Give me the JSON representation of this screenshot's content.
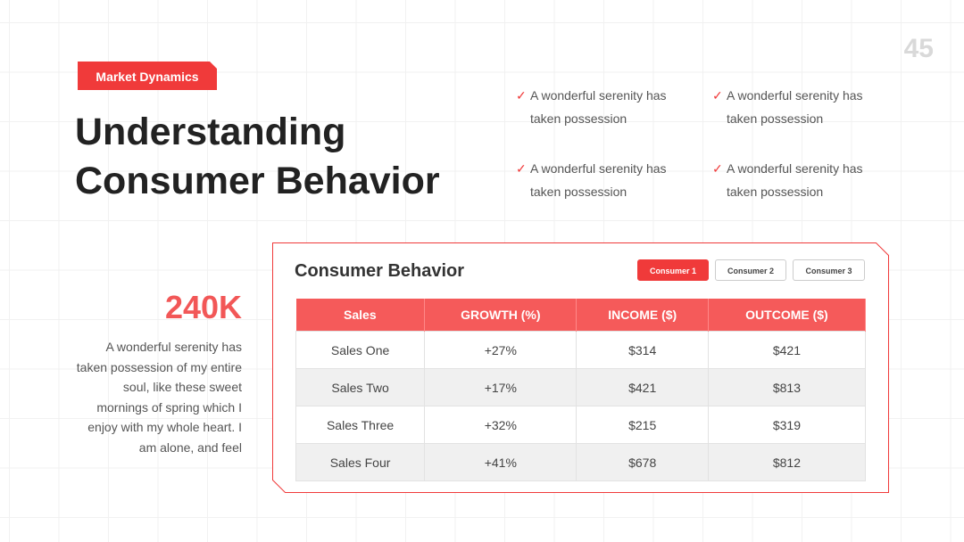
{
  "page_number": "45",
  "tag": "Market Dynamics",
  "title": [
    "Understanding",
    "Consumer Behavior"
  ],
  "checklist": [
    "A wonderful serenity has taken possession",
    "A wonderful serenity has taken possession",
    "A wonderful serenity has taken possession",
    "A wonderful serenity has taken possession"
  ],
  "stat": {
    "value": "240K",
    "text": "A wonderful serenity has taken possession of my entire soul, like these sweet mornings of spring which I enjoy with my whole heart. I am alone, and feel"
  },
  "card": {
    "title": "Consumer Behavior",
    "tabs": [
      "Consumer 1",
      "Consumer 2",
      "Consumer 3"
    ],
    "table": {
      "header": [
        "Sales",
        "GROWTH (%)",
        "INCOME ($)",
        "OUTCOME ($)"
      ],
      "rows": [
        [
          "Sales One",
          "+27%",
          "$314",
          "$421"
        ],
        [
          "Sales Two",
          "+17%",
          "$421",
          "$813"
        ],
        [
          "Sales Three",
          "+32%",
          "$215",
          "$319"
        ],
        [
          "Sales Four",
          "+41%",
          "$678",
          "$812"
        ]
      ]
    }
  }
}
